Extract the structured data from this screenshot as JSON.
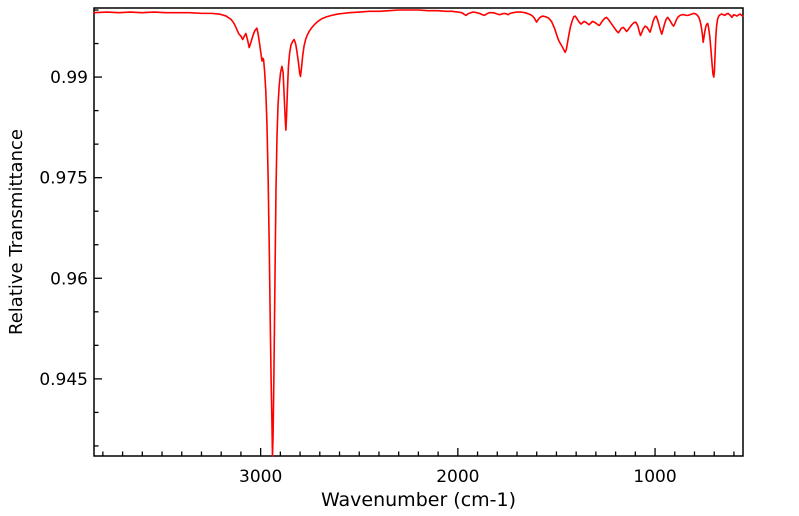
{
  "chart_data": {
    "type": "line",
    "title": "",
    "xlabel": "Wavenumber (cm-1)",
    "ylabel": "Relative Transmittance",
    "legend": "none",
    "grid": false,
    "background_color": "#ffffff",
    "axis_color": "#000000",
    "line_color": "#ff0000",
    "x_axis": {
      "left_value": 3845,
      "right_value": 554,
      "reversed": true,
      "major_ticks": [
        3000,
        2000,
        1000
      ],
      "major_tick_labels": [
        "3000",
        "2000",
        "1000"
      ],
      "minor_tick_interval": 100,
      "minor_tick_start": 600,
      "minor_tick_end": 3800
    },
    "y_axis": {
      "bottom_value": 0.9335,
      "top_value": 1.0003,
      "major_ticks": [
        0.945,
        0.96,
        0.975,
        0.99
      ],
      "major_tick_labels": [
        "0.945",
        "0.96",
        "0.975",
        "0.99"
      ],
      "minor_tick_interval": 0.005,
      "minor_tick_start": 0.935,
      "minor_tick_end": 1.0
    },
    "series": [
      {
        "name": "ir-spectrum",
        "color": "#ff0000",
        "points": [
          [
            3845,
            0.9996
          ],
          [
            3780,
            0.9997
          ],
          [
            3720,
            0.9996
          ],
          [
            3660,
            0.9997
          ],
          [
            3600,
            0.9996
          ],
          [
            3540,
            0.9997
          ],
          [
            3480,
            0.9996
          ],
          [
            3420,
            0.9996
          ],
          [
            3360,
            0.9996
          ],
          [
            3300,
            0.9995
          ],
          [
            3250,
            0.9995
          ],
          [
            3210,
            0.9994
          ],
          [
            3175,
            0.9991
          ],
          [
            3150,
            0.9986
          ],
          [
            3135,
            0.998
          ],
          [
            3122,
            0.9972
          ],
          [
            3112,
            0.9965
          ],
          [
            3100,
            0.9961
          ],
          [
            3091,
            0.9956
          ],
          [
            3083,
            0.9961
          ],
          [
            3075,
            0.9965
          ],
          [
            3066,
            0.9955
          ],
          [
            3058,
            0.9944
          ],
          [
            3050,
            0.9951
          ],
          [
            3040,
            0.9961
          ],
          [
            3030,
            0.9969
          ],
          [
            3019,
            0.9973
          ],
          [
            3012,
            0.9963
          ],
          [
            3005,
            0.9949
          ],
          [
            2999,
            0.9936
          ],
          [
            2993,
            0.9924
          ],
          [
            2989,
            0.9928
          ],
          [
            2985,
            0.9926
          ],
          [
            2980,
            0.9909
          ],
          [
            2974,
            0.988
          ],
          [
            2968,
            0.983
          ],
          [
            2962,
            0.975
          ],
          [
            2956,
            0.964
          ],
          [
            2951,
            0.953
          ],
          [
            2947,
            0.945
          ],
          [
            2943,
            0.939
          ],
          [
            2940,
            0.9335
          ],
          [
            2937,
            0.9365
          ],
          [
            2934,
            0.9425
          ],
          [
            2930,
            0.9525
          ],
          [
            2926,
            0.9635
          ],
          [
            2922,
            0.9735
          ],
          [
            2917,
            0.9812
          ],
          [
            2912,
            0.9857
          ],
          [
            2906,
            0.9887
          ],
          [
            2899,
            0.9907
          ],
          [
            2892,
            0.9916
          ],
          [
            2886,
            0.9907
          ],
          [
            2879,
            0.9861
          ],
          [
            2875,
            0.9836
          ],
          [
            2872,
            0.9821
          ],
          [
            2869,
            0.9839
          ],
          [
            2864,
            0.9881
          ],
          [
            2859,
            0.9916
          ],
          [
            2853,
            0.9936
          ],
          [
            2846,
            0.9948
          ],
          [
            2838,
            0.9953
          ],
          [
            2830,
            0.9956
          ],
          [
            2822,
            0.9949
          ],
          [
            2815,
            0.9936
          ],
          [
            2808,
            0.9921
          ],
          [
            2802,
            0.9906
          ],
          [
            2798,
            0.9901
          ],
          [
            2793,
            0.9913
          ],
          [
            2787,
            0.9931
          ],
          [
            2780,
            0.9946
          ],
          [
            2772,
            0.9956
          ],
          [
            2763,
            0.9963
          ],
          [
            2752,
            0.9969
          ],
          [
            2740,
            0.9974
          ],
          [
            2725,
            0.9979
          ],
          [
            2710,
            0.9983
          ],
          [
            2690,
            0.9987
          ],
          [
            2665,
            0.999
          ],
          [
            2640,
            0.9992
          ],
          [
            2610,
            0.9994
          ],
          [
            2580,
            0.9995
          ],
          [
            2550,
            0.9996
          ],
          [
            2500,
            0.9997
          ],
          [
            2450,
            0.9998
          ],
          [
            2400,
            0.9998
          ],
          [
            2350,
            0.9999
          ],
          [
            2300,
            1.0
          ],
          [
            2250,
            1.0
          ],
          [
            2200,
            1.0
          ],
          [
            2150,
            0.9999
          ],
          [
            2100,
            0.9999
          ],
          [
            2060,
            0.9998
          ],
          [
            2030,
            0.9998
          ],
          [
            2000,
            0.9997
          ],
          [
            1980,
            0.9996
          ],
          [
            1965,
            0.9993
          ],
          [
            1958,
            0.9992
          ],
          [
            1950,
            0.9994
          ],
          [
            1935,
            0.9996
          ],
          [
            1920,
            0.9997
          ],
          [
            1905,
            0.9996
          ],
          [
            1890,
            0.9995
          ],
          [
            1875,
            0.9993
          ],
          [
            1865,
            0.9992
          ],
          [
            1855,
            0.9994
          ],
          [
            1840,
            0.9996
          ],
          [
            1820,
            0.9996
          ],
          [
            1800,
            0.9994
          ],
          [
            1789,
            0.9993
          ],
          [
            1778,
            0.9994
          ],
          [
            1765,
            0.9995
          ],
          [
            1752,
            0.9994
          ],
          [
            1745,
            0.9993
          ],
          [
            1735,
            0.9995
          ],
          [
            1720,
            0.9996
          ],
          [
            1700,
            0.9997
          ],
          [
            1680,
            0.9997
          ],
          [
            1660,
            0.9996
          ],
          [
            1640,
            0.9994
          ],
          [
            1625,
            0.9992
          ],
          [
            1612,
            0.9988
          ],
          [
            1601,
            0.9982
          ],
          [
            1592,
            0.9986
          ],
          [
            1583,
            0.9989
          ],
          [
            1570,
            0.9991
          ],
          [
            1555,
            0.999
          ],
          [
            1540,
            0.9988
          ],
          [
            1525,
            0.9983
          ],
          [
            1510,
            0.9973
          ],
          [
            1500,
            0.9964
          ],
          [
            1493,
            0.9958
          ],
          [
            1486,
            0.9953
          ],
          [
            1478,
            0.9949
          ],
          [
            1470,
            0.9945
          ],
          [
            1463,
            0.9941
          ],
          [
            1456,
            0.9937
          ],
          [
            1450,
            0.9941
          ],
          [
            1444,
            0.9951
          ],
          [
            1437,
            0.9963
          ],
          [
            1429,
            0.9975
          ],
          [
            1420,
            0.9984
          ],
          [
            1412,
            0.999
          ],
          [
            1405,
            0.9991
          ],
          [
            1398,
            0.9988
          ],
          [
            1390,
            0.9984
          ],
          [
            1382,
            0.9981
          ],
          [
            1375,
            0.9979
          ],
          [
            1368,
            0.9981
          ],
          [
            1360,
            0.9983
          ],
          [
            1352,
            0.9982
          ],
          [
            1343,
            0.998
          ],
          [
            1335,
            0.9978
          ],
          [
            1327,
            0.998
          ],
          [
            1318,
            0.9983
          ],
          [
            1308,
            0.9982
          ],
          [
            1298,
            0.998
          ],
          [
            1290,
            0.9978
          ],
          [
            1282,
            0.9977
          ],
          [
            1273,
            0.9981
          ],
          [
            1263,
            0.9985
          ],
          [
            1254,
            0.9988
          ],
          [
            1246,
            0.9989
          ],
          [
            1237,
            0.9986
          ],
          [
            1227,
            0.9982
          ],
          [
            1215,
            0.9977
          ],
          [
            1203,
            0.9972
          ],
          [
            1193,
            0.9968
          ],
          [
            1186,
            0.9966
          ],
          [
            1179,
            0.9969
          ],
          [
            1170,
            0.9973
          ],
          [
            1160,
            0.9974
          ],
          [
            1152,
            0.9971
          ],
          [
            1145,
            0.9968
          ],
          [
            1138,
            0.997
          ],
          [
            1128,
            0.9974
          ],
          [
            1118,
            0.9978
          ],
          [
            1108,
            0.9981
          ],
          [
            1098,
            0.9982
          ],
          [
            1088,
            0.9977
          ],
          [
            1080,
            0.9968
          ],
          [
            1074,
            0.9962
          ],
          [
            1068,
            0.9966
          ],
          [
            1060,
            0.9972
          ],
          [
            1050,
            0.9976
          ],
          [
            1040,
            0.9974
          ],
          [
            1032,
            0.997
          ],
          [
            1025,
            0.9967
          ],
          [
            1018,
            0.9974
          ],
          [
            1010,
            0.9983
          ],
          [
            1002,
            0.9989
          ],
          [
            995,
            0.9991
          ],
          [
            988,
            0.9986
          ],
          [
            980,
            0.9978
          ],
          [
            972,
            0.9969
          ],
          [
            966,
            0.9964
          ],
          [
            960,
            0.997
          ],
          [
            952,
            0.9979
          ],
          [
            944,
            0.9986
          ],
          [
            936,
            0.9989
          ],
          [
            928,
            0.9986
          ],
          [
            920,
            0.9982
          ],
          [
            912,
            0.9978
          ],
          [
            906,
            0.9976
          ],
          [
            899,
            0.998
          ],
          [
            891,
            0.9986
          ],
          [
            882,
            0.999
          ],
          [
            873,
            0.9992
          ],
          [
            863,
            0.9993
          ],
          [
            853,
            0.9993
          ],
          [
            843,
            0.9992
          ],
          [
            833,
            0.9992
          ],
          [
            823,
            0.9993
          ],
          [
            813,
            0.9994
          ],
          [
            803,
            0.9995
          ],
          [
            793,
            0.9994
          ],
          [
            785,
            0.9992
          ],
          [
            778,
            0.9989
          ],
          [
            771,
            0.9983
          ],
          [
            765,
            0.9974
          ],
          [
            760,
            0.9964
          ],
          [
            756,
            0.9952
          ],
          [
            752,
            0.9959
          ],
          [
            747,
            0.9969
          ],
          [
            742,
            0.9976
          ],
          [
            737,
            0.9979
          ],
          [
            733,
            0.998
          ],
          [
            728,
            0.9973
          ],
          [
            722,
            0.9959
          ],
          [
            716,
            0.9939
          ],
          [
            710,
            0.9916
          ],
          [
            706,
            0.9904
          ],
          [
            702,
            0.99
          ],
          [
            699,
            0.9909
          ],
          [
            696,
            0.9931
          ],
          [
            692,
            0.9959
          ],
          [
            688,
            0.9976
          ],
          [
            683,
            0.9986
          ],
          [
            677,
            0.9991
          ],
          [
            670,
            0.9993
          ],
          [
            662,
            0.9994
          ],
          [
            654,
            0.9993
          ],
          [
            646,
            0.9992
          ],
          [
            638,
            0.9994
          ],
          [
            630,
            0.9995
          ],
          [
            622,
            0.9993
          ],
          [
            615,
            0.9991
          ],
          [
            611,
            0.9989
          ],
          [
            606,
            0.9991
          ],
          [
            600,
            0.9993
          ],
          [
            592,
            0.9992
          ],
          [
            584,
            0.9991
          ],
          [
            576,
            0.9993
          ],
          [
            568,
            0.9994
          ],
          [
            561,
            0.9992
          ],
          [
            554,
            0.9991
          ]
        ]
      }
    ]
  }
}
